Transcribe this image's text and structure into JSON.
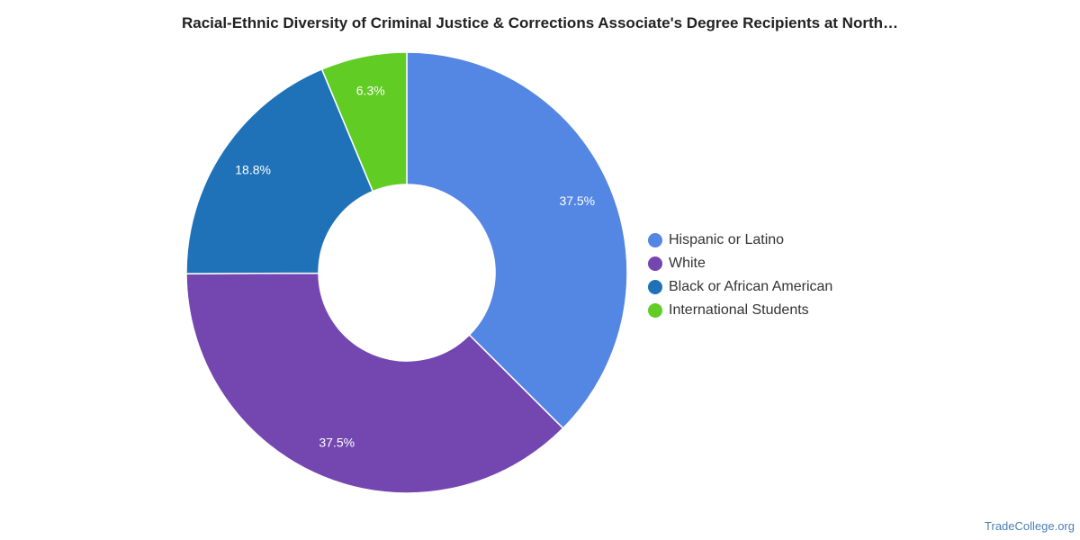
{
  "title": "Racial-Ethnic Diversity of Criminal Justice & Corrections Associate's Degree Recipients at North…",
  "watermark": "TradeCollege.org",
  "chart_data": {
    "type": "pie",
    "donut": true,
    "legend_position": "right",
    "series": [
      {
        "name": "Hispanic or Latino",
        "value": 37.5,
        "label": "37.5%",
        "color": "#5486e3"
      },
      {
        "name": "White",
        "value": 37.5,
        "label": "37.5%",
        "color": "#7447b0"
      },
      {
        "name": "Black or African American",
        "value": 18.8,
        "label": "18.8%",
        "color": "#1f72b8"
      },
      {
        "name": "International Students",
        "value": 6.3,
        "label": "6.3%",
        "color": "#61cc24"
      }
    ]
  }
}
